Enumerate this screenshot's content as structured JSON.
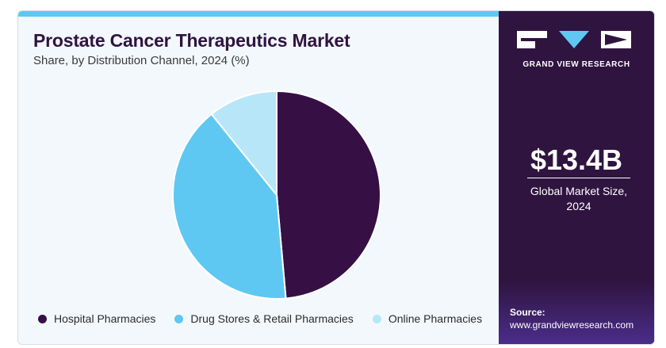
{
  "header": {
    "title": "Prostate Cancer Therapeutics Market",
    "subtitle": "Share, by Distribution Channel, 2024 (%)"
  },
  "chart_data": {
    "type": "pie",
    "title": "Prostate Cancer Therapeutics Market",
    "subtitle": "Share, by Distribution Channel, 2024 (%)",
    "start_angle_deg": 0,
    "direction": "clockwise",
    "legend_position": "bottom",
    "slices": [
      {
        "label": "Hospital Pharmacies",
        "value": 48.6,
        "color": "#361044"
      },
      {
        "label": "Drug Stores & Retail Pharmacies",
        "value": 40.6,
        "color": "#5ec8f2"
      },
      {
        "label": "Online Pharmacies",
        "value": 10.8,
        "color": "#b8e6f9"
      }
    ]
  },
  "sidebar": {
    "brand": "GRAND VIEW RESEARCH",
    "logo_icon": "grand-view-research-logo",
    "market_size": "$13.4B",
    "market_size_label": "Global Market Size, 2024",
    "source_label": "Source:",
    "source_url": "www.grandviewresearch.com",
    "background_color": "#2f1440"
  }
}
